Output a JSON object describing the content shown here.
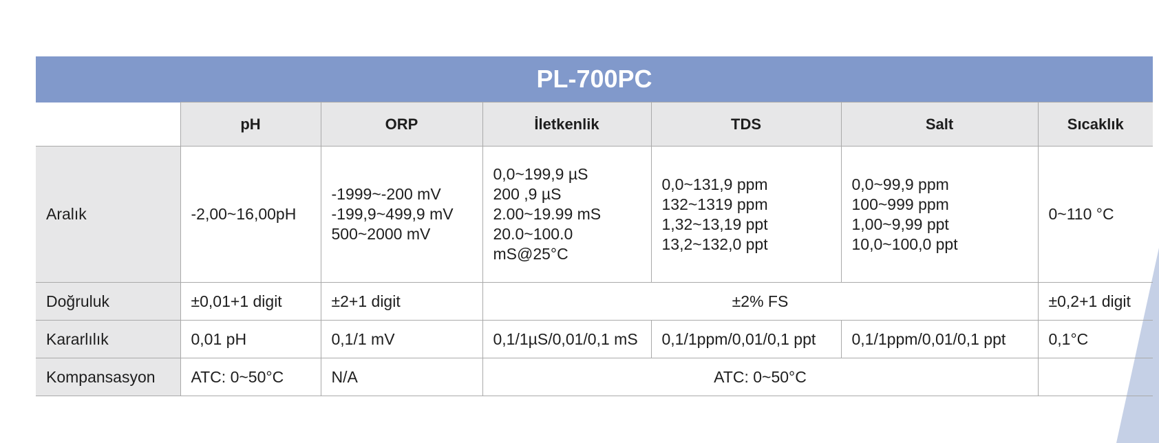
{
  "table": {
    "title": "PL-700PC",
    "header": [
      "pH",
      "ORP",
      "İletkenlik",
      "TDS",
      "Salt",
      "Sıcaklık"
    ],
    "rows": [
      {
        "label": "Aralık",
        "cells": [
          [
            "-2,00~16,00pH"
          ],
          [
            "-1999~-200 mV",
            "-199,9~499,9 mV",
            "500~2000 mV"
          ],
          [
            "0,0~199,9 µS",
            "200 ,9 µS",
            "2.00~19.99 mS",
            "20.0~100.0",
            "mS@25°C"
          ],
          [
            "0,0~131,9 ppm",
            "132~1319 ppm",
            "1,32~13,19 ppt",
            "13,2~132,0 ppt"
          ],
          [
            "0,0~99,9 ppm",
            "100~999 ppm",
            "1,00~9,99 ppt",
            "10,0~100,0 ppt"
          ],
          [
            "0~110 °C"
          ]
        ]
      },
      {
        "label": "Doğruluk",
        "cells": [
          "±0,01+1 digit",
          "±2+1 digit",
          "±2% FS",
          "±0,2+1 digit"
        ]
      },
      {
        "label": "Kararlılık",
        "cells": [
          "0,01 pH",
          "0,1/1 mV",
          "0,1/1µS/0,01/0,1 mS",
          "0,1/1ppm/0,01/0,1 ppt",
          "0,1/1ppm/0,01/0,1 ppt",
          "0,1°C"
        ]
      },
      {
        "label": "Kompansasyon",
        "cells": [
          "ATC: 0~50°C",
          "N/A",
          "ATC: 0~50°C"
        ]
      }
    ]
  }
}
